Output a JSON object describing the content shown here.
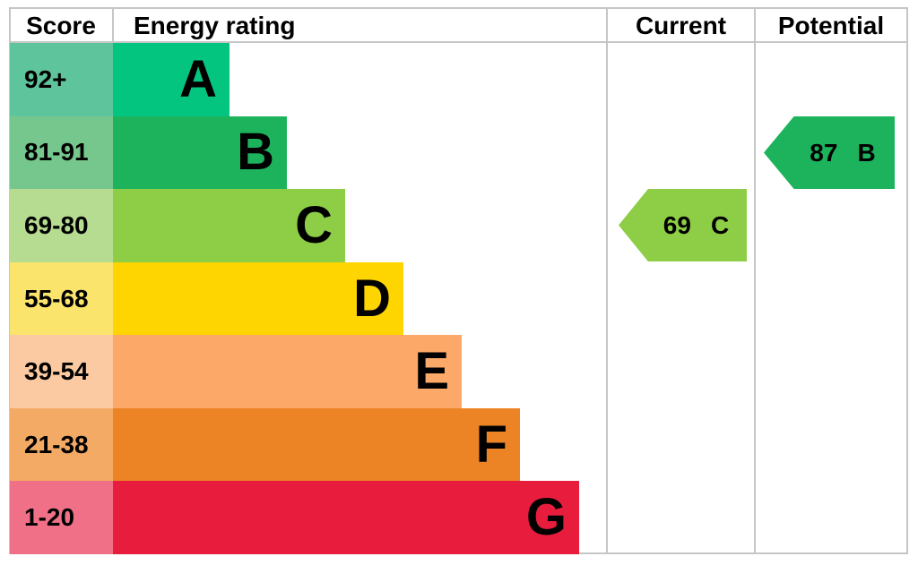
{
  "header": {
    "score": "Score",
    "energy_rating": "Energy rating",
    "current": "Current",
    "potential": "Potential"
  },
  "bands": [
    {
      "score": "92+",
      "letter": "A",
      "bar_color": "#04c57f",
      "score_color": "#5ec49c"
    },
    {
      "score": "81-91",
      "letter": "B",
      "bar_color": "#1cb35c",
      "score_color": "#76c78d"
    },
    {
      "score": "69-80",
      "letter": "C",
      "bar_color": "#8dce46",
      "score_color": "#b5dc90"
    },
    {
      "score": "55-68",
      "letter": "D",
      "bar_color": "#fed401",
      "score_color": "#fbe46c"
    },
    {
      "score": "39-54",
      "letter": "E",
      "bar_color": "#fba868",
      "score_color": "#fbcaa2"
    },
    {
      "score": "21-38",
      "letter": "F",
      "bar_color": "#ec8426",
      "score_color": "#f3aa64"
    },
    {
      "score": "1-20",
      "letter": "G",
      "bar_color": "#e81d3e",
      "score_color": "#f07187"
    }
  ],
  "current": {
    "value": "69",
    "letter": "C",
    "color": "#8dce46"
  },
  "potential": {
    "value": "87",
    "letter": "B",
    "color": "#1cb35c"
  },
  "border_color": "#c6c6c6",
  "chart_data": {
    "type": "bar",
    "title": "Energy rating",
    "categories": [
      "A",
      "B",
      "C",
      "D",
      "E",
      "F",
      "G"
    ],
    "score_ranges": [
      "92+",
      "81-91",
      "69-80",
      "55-68",
      "39-54",
      "21-38",
      "1-20"
    ],
    "colors": [
      "#04c57f",
      "#1cb35c",
      "#8dce46",
      "#fed401",
      "#fba868",
      "#ec8426",
      "#e81d3e"
    ],
    "legend_position": "none",
    "grid": false,
    "markers": [
      {
        "name": "Current",
        "score": 69,
        "rating": "C",
        "color": "#8dce46"
      },
      {
        "name": "Potential",
        "score": 87,
        "rating": "B",
        "color": "#1cb35c"
      }
    ]
  }
}
